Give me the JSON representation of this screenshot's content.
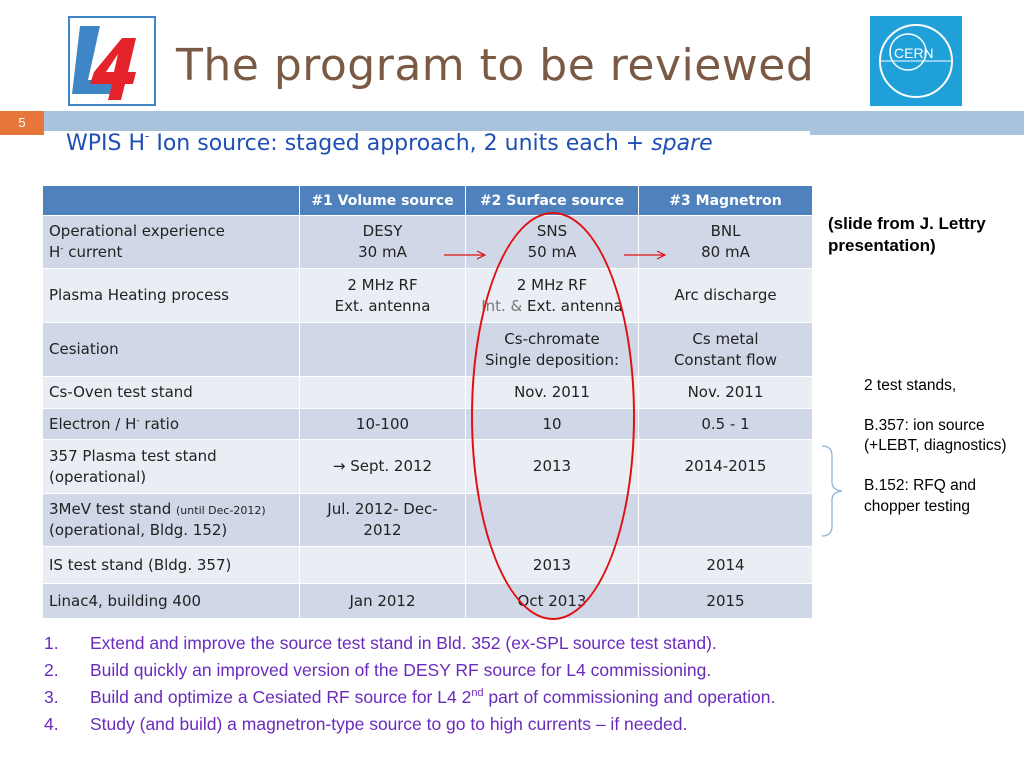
{
  "header": {
    "logo_text": "L4",
    "cern_logo_text": "CERN",
    "title": "The program to be reviewed",
    "slide_number": "5"
  },
  "subtitle": {
    "pre": "WPIS H",
    "sup": "-",
    "post": " Ion source: staged approach, 2 units each ",
    "italic": "+ spare"
  },
  "table": {
    "headers": [
      "",
      "#1 Volume source",
      "#2 Surface source",
      "#3 Magnetron"
    ],
    "rows": [
      {
        "label_1": "Operational experience",
        "label_2": "H",
        "label_2_sup": "-",
        "label_2_post": " current",
        "c1_a": "DESY",
        "c1_b": "30 mA",
        "c2_a": "SNS",
        "c2_b": "50 mA",
        "c3_a": "BNL",
        "c3_b": "80 mA"
      },
      {
        "label": "Plasma Heating process",
        "c1_a": "2 MHz RF",
        "c1_b": "Ext. antenna",
        "c2_a": "2 MHz RF",
        "c2_b_pre": "Int. & ",
        "c2_b": "Ext. antenna",
        "c3": "Arc discharge"
      },
      {
        "label": "Cesiation",
        "c1": "",
        "c2_a": "Cs-chromate",
        "c2_b": "Single deposition:",
        "c3_a": "Cs metal",
        "c3_b": "Constant flow"
      },
      {
        "label": "Cs-Oven test stand",
        "c1": "",
        "c2": "Nov. 2011",
        "c3": "Nov. 2011"
      },
      {
        "label_pre": "Electron / H",
        "label_sup": "-",
        "label_post": " ratio",
        "c1": "10-100",
        "c2": "10",
        "c3": "0.5 - 1"
      },
      {
        "label_1": "357 Plasma test stand",
        "label_2": "(operational)",
        "c1": "→  Sept. 2012",
        "c2": "2013",
        "c3": "2014-2015"
      },
      {
        "label_1": "3MeV test stand ",
        "label_1_small": "(until Dec-2012)",
        "label_2": "(operational, Bldg. 152)",
        "c1_a": "Jul. 2012- Dec-",
        "c1_b": "2012",
        "c2": "",
        "c3": ""
      },
      {
        "label": "IS test stand  (Bldg. 357)",
        "c1": "",
        "c2": "2013",
        "c3": "2014"
      },
      {
        "label": "Linac4, building 400",
        "c1": "Jan 2012",
        "c2": "Oct 2013",
        "c3": "2015"
      }
    ]
  },
  "note": "(slide from J. Lettry presentation)",
  "side": {
    "p1": "2 test stands,",
    "p2": "B.357: ion source (+LEBT, diagnostics)",
    "p3": "B.152: RFQ and chopper testing"
  },
  "list": [
    {
      "n": "1.",
      "text": "Extend and improve the source test stand in Bld. 352 (ex-SPL source test stand)."
    },
    {
      "n": "2.",
      "text": "Build quickly an improved version of the DESY RF source for L4 commissioning."
    },
    {
      "n": "3.",
      "text_pre": "Build and optimize a Cesiated RF source for L4 2",
      "sup": "nd",
      "text_post": " part of commissioning and operation."
    },
    {
      "n": "4.",
      "text": "Study (and build) a magnetron-type source to go to high currents – if needed."
    }
  ],
  "colors": {
    "title": "#7a5a44",
    "subtitle": "#1f4fb5",
    "table_header": "#4f81bd",
    "row_odd": "#d0d8e8",
    "row_even": "#e9edf4",
    "slide_number_bg": "#e6763a",
    "band": "#a9c3dd",
    "highlight": "#e01010",
    "list_text": "#6a2bbd"
  }
}
